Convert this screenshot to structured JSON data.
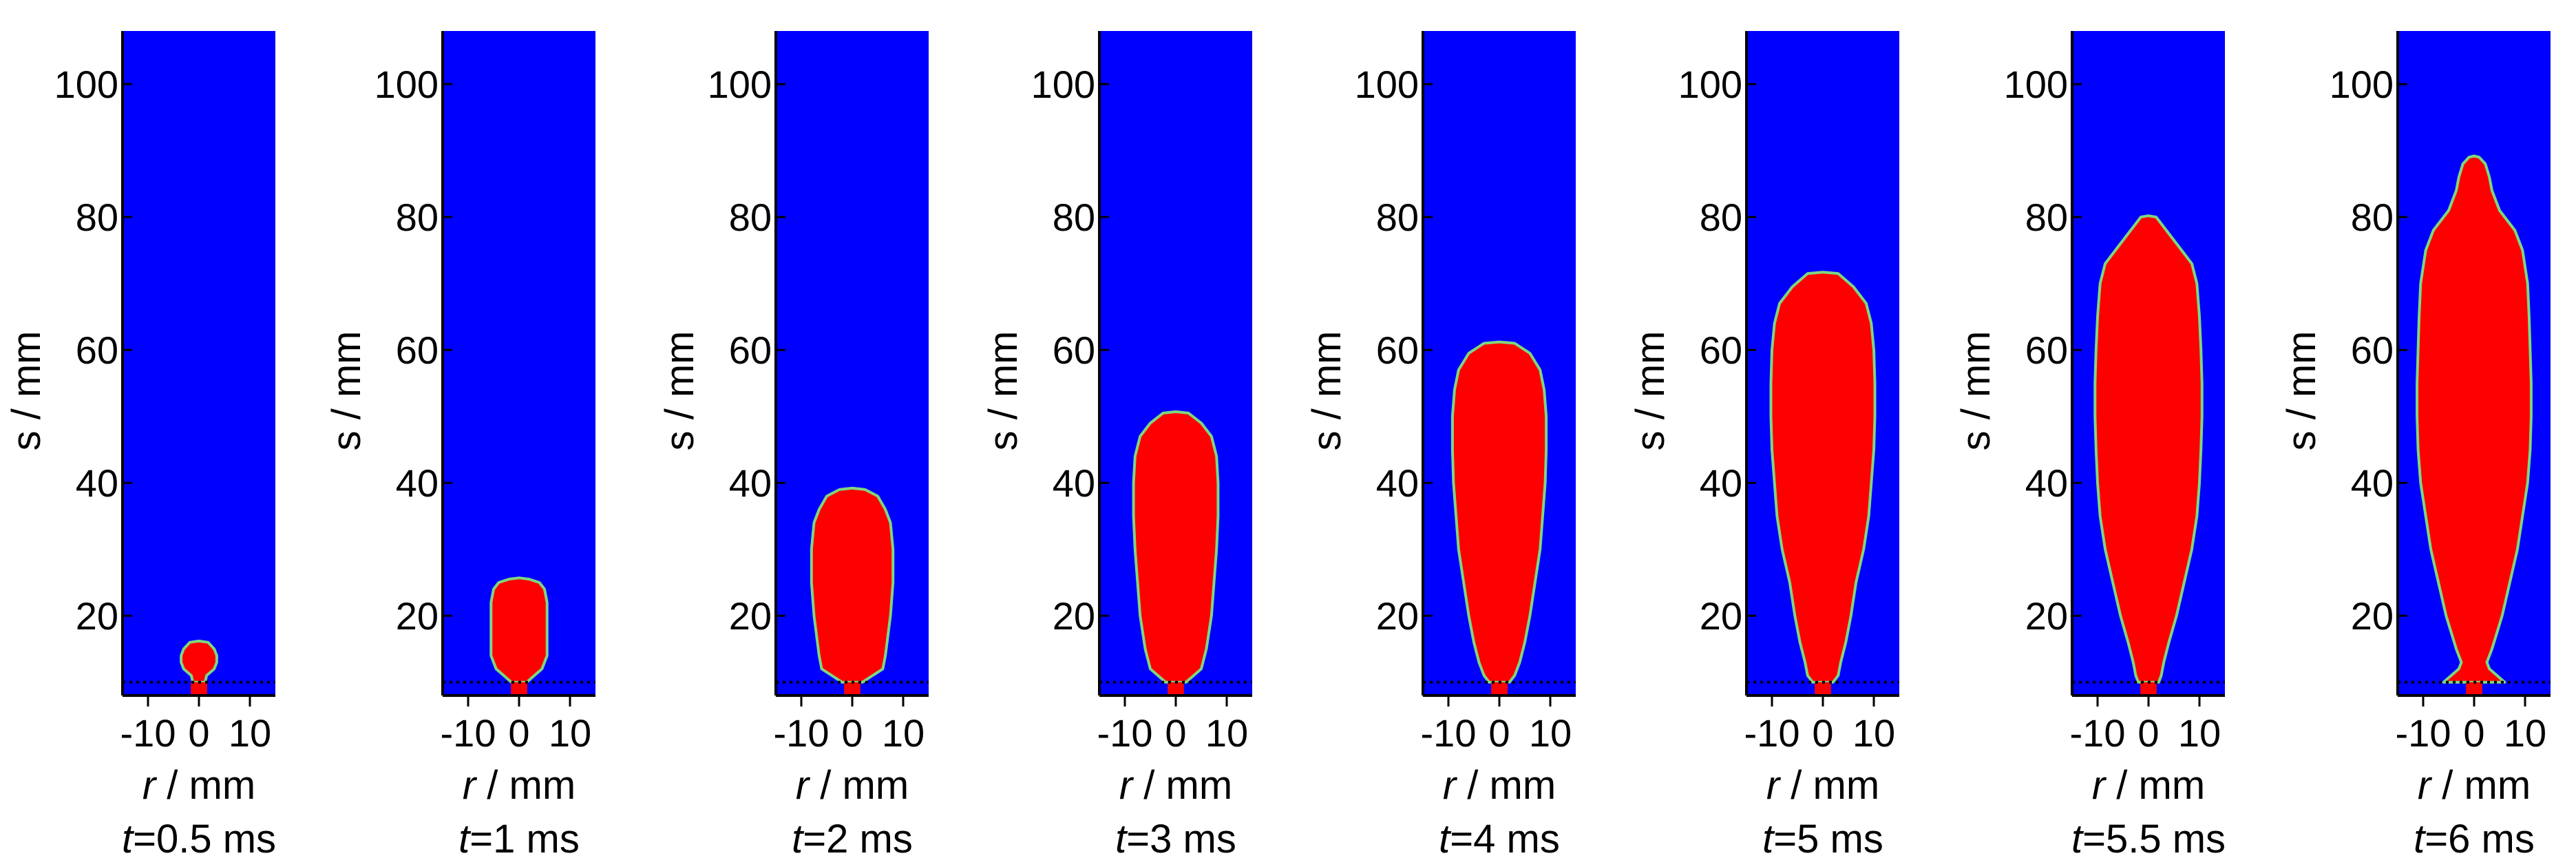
{
  "colors": {
    "background_field": "#0000ff",
    "jet": "#ff0000",
    "interface": "#7fd67f"
  },
  "chart_data": [
    {
      "type": "heatmap",
      "time_var": "t",
      "time_value": "=0.5 ms",
      "ylabel": "s / mm",
      "xlabel_var": "r",
      "xlabel_unit": " / mm",
      "x_ticks": [
        "-10",
        "0",
        "10"
      ],
      "y_ticks": [
        "20",
        "40",
        "60",
        "80",
        "100"
      ],
      "xlim": [
        -15,
        15
      ],
      "ylim": [
        8,
        108
      ],
      "jet_profile": {
        "s": [
          10,
          11,
          12,
          13,
          14,
          15,
          16
        ],
        "r": [
          1.2,
          1.5,
          3.0,
          3.5,
          3.5,
          3.0,
          1.8
        ]
      }
    },
    {
      "type": "heatmap",
      "time_var": "t",
      "time_value": "=1 ms",
      "ylabel": "s / mm",
      "xlabel_var": "r",
      "xlabel_unit": " / mm",
      "x_ticks": [
        "-10",
        "0",
        "10"
      ],
      "y_ticks": [
        "20",
        "40",
        "60",
        "80",
        "100"
      ],
      "xlim": [
        -15,
        15
      ],
      "ylim": [
        8,
        108
      ],
      "jet_profile": {
        "s": [
          10,
          11,
          12,
          14,
          17,
          20,
          22,
          24,
          25,
          25.5
        ],
        "r": [
          1.5,
          3,
          4.5,
          5.5,
          5.5,
          5.5,
          5.5,
          5,
          4,
          2
        ]
      }
    },
    {
      "type": "heatmap",
      "time_var": "t",
      "time_value": "=2 ms",
      "ylabel": "s / mm",
      "xlabel_var": "r",
      "xlabel_unit": " / mm",
      "x_ticks": [
        "-10",
        "0",
        "10"
      ],
      "y_ticks": [
        "20",
        "40",
        "60",
        "80",
        "100"
      ],
      "xlim": [
        -15,
        15
      ],
      "ylim": [
        8,
        108
      ],
      "jet_profile": {
        "s": [
          10,
          11,
          12,
          14,
          17,
          20,
          25,
          30,
          34,
          36,
          38,
          39
        ],
        "r": [
          2,
          4,
          6,
          6.5,
          7,
          7.5,
          8,
          8,
          7.5,
          6.5,
          5,
          2.5
        ]
      }
    },
    {
      "type": "heatmap",
      "time_var": "t",
      "time_value": "=3 ms",
      "ylabel": "s / mm",
      "xlabel_var": "r",
      "xlabel_unit": " / mm",
      "x_ticks": [
        "-10",
        "0",
        "10"
      ],
      "y_ticks": [
        "20",
        "40",
        "60",
        "80",
        "100"
      ],
      "xlim": [
        -15,
        15
      ],
      "ylim": [
        8,
        108
      ],
      "jet_profile": {
        "s": [
          10,
          11,
          12,
          15,
          20,
          25,
          30,
          35,
          40,
          44,
          47,
          49,
          50.5
        ],
        "r": [
          2,
          3.5,
          5,
          6,
          7,
          7.5,
          8,
          8.3,
          8.3,
          8,
          7,
          5,
          2.5
        ]
      }
    },
    {
      "type": "heatmap",
      "time_var": "t",
      "time_value": "=4 ms",
      "ylabel": "s / mm",
      "xlabel_var": "r",
      "xlabel_unit": " / mm",
      "x_ticks": [
        "-10",
        "0",
        "10"
      ],
      "y_ticks": [
        "20",
        "40",
        "60",
        "80",
        "100"
      ],
      "xlim": [
        -15,
        15
      ],
      "ylim": [
        8,
        108
      ],
      "jet_profile": {
        "s": [
          10,
          11,
          13,
          16,
          20,
          25,
          30,
          35,
          40,
          45,
          50,
          54,
          57,
          59.5,
          61
        ],
        "r": [
          2,
          3,
          4,
          5,
          6,
          7,
          8,
          8.5,
          9,
          9.2,
          9.2,
          8.8,
          8,
          6,
          3
        ]
      }
    },
    {
      "type": "heatmap",
      "time_var": "t",
      "time_value": "=5 ms",
      "ylabel": "s / mm",
      "xlabel_var": "r",
      "xlabel_unit": " / mm",
      "x_ticks": [
        "-10",
        "0",
        "10"
      ],
      "y_ticks": [
        "20",
        "40",
        "60",
        "80",
        "100"
      ],
      "xlim": [
        -15,
        15
      ],
      "ylim": [
        8,
        108
      ],
      "jet_profile": {
        "s": [
          10,
          11,
          13,
          16,
          20,
          25,
          30,
          35,
          40,
          45,
          50,
          55,
          60,
          64,
          67,
          69.5,
          71.5
        ],
        "r": [
          2,
          3,
          3.5,
          4.5,
          5.5,
          6.5,
          8,
          9,
          9.5,
          10,
          10.2,
          10.2,
          10,
          9.5,
          8.5,
          6,
          3
        ]
      }
    },
    {
      "type": "heatmap",
      "time_var": "t",
      "time_value": "=5.5 ms",
      "ylabel": "s / mm",
      "xlabel_var": "r",
      "xlabel_unit": " / mm",
      "x_ticks": [
        "-10",
        "0",
        "10"
      ],
      "y_ticks": [
        "20",
        "40",
        "60",
        "80",
        "100"
      ],
      "xlim": [
        -15,
        15
      ],
      "ylim": [
        8,
        108
      ],
      "jet_profile": {
        "s": [
          10,
          11,
          13,
          16,
          20,
          25,
          30,
          35,
          40,
          45,
          50,
          55,
          60,
          65,
          70,
          73,
          75.5,
          78,
          80
        ],
        "r": [
          2,
          2.5,
          3,
          4,
          5.5,
          7,
          8.5,
          9.5,
          10,
          10.3,
          10.5,
          10.5,
          10.3,
          10,
          9.5,
          8.5,
          6,
          3.5,
          1.5
        ]
      }
    },
    {
      "type": "heatmap",
      "time_var": "t",
      "time_value": "=6 ms",
      "ylabel": "s / mm",
      "xlabel_var": "r",
      "xlabel_unit": " / mm",
      "x_ticks": [
        "-10",
        "0",
        "10"
      ],
      "y_ticks": [
        "20",
        "40",
        "60",
        "80",
        "100"
      ],
      "xlim": [
        -15,
        15
      ],
      "ylim": [
        8,
        108
      ],
      "jet_profile": {
        "s": [
          10,
          11,
          12,
          13,
          15,
          20,
          25,
          30,
          35,
          40,
          45,
          50,
          55,
          60,
          65,
          70,
          75,
          78,
          81,
          84,
          86,
          88,
          89
        ],
        "r": [
          6,
          4.5,
          3,
          2.5,
          3.5,
          5.5,
          7,
          8.5,
          9.5,
          10.5,
          11,
          11.2,
          11.2,
          11,
          10.8,
          10.5,
          9.5,
          8,
          5,
          3.5,
          3,
          2.2,
          1
        ]
      }
    }
  ]
}
